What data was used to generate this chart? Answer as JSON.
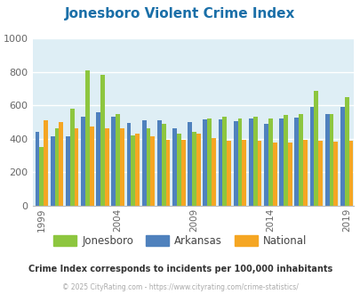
{
  "title": "Jonesboro Violent Crime Index",
  "subtitle": "Crime Index corresponds to incidents per 100,000 inhabitants",
  "footer": "© 2025 CityRating.com - https://www.cityrating.com/crime-statistics/",
  "years": [
    1999,
    2000,
    2001,
    2002,
    2003,
    2004,
    2005,
    2006,
    2007,
    2008,
    2009,
    2010,
    2011,
    2012,
    2013,
    2014,
    2015,
    2016,
    2017,
    2018,
    2019
  ],
  "jonesboro": [
    350,
    460,
    580,
    810,
    780,
    550,
    420,
    460,
    490,
    430,
    440,
    520,
    530,
    520,
    530,
    520,
    540,
    550,
    685,
    550,
    650
  ],
  "arkansas": [
    440,
    415,
    415,
    530,
    560,
    530,
    495,
    510,
    510,
    465,
    500,
    515,
    515,
    505,
    520,
    490,
    520,
    525,
    590,
    545,
    590
  ],
  "national": [
    510,
    500,
    460,
    475,
    465,
    460,
    430,
    415,
    395,
    395,
    430,
    405,
    390,
    395,
    390,
    375,
    380,
    395,
    390,
    385,
    390
  ],
  "bar_order": [
    "arkansas",
    "jonesboro",
    "national"
  ],
  "colors": {
    "jonesboro": "#8dc63f",
    "arkansas": "#4f81bd",
    "national": "#f5a623"
  },
  "ylim": [
    0,
    1000
  ],
  "yticks": [
    0,
    200,
    400,
    600,
    800,
    1000
  ],
  "xtick_years": [
    1999,
    2004,
    2009,
    2014,
    2019
  ],
  "bg_color": "#deeef5",
  "title_color": "#1a6fa8",
  "subtitle_color": "#333333",
  "footer_color": "#aaaaaa"
}
